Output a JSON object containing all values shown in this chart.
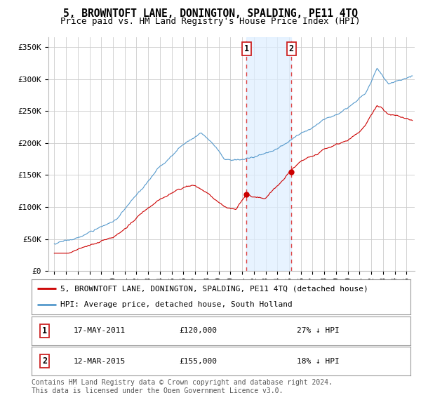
{
  "title": "5, BROWNTOFT LANE, DONINGTON, SPALDING, PE11 4TQ",
  "subtitle": "Price paid vs. HM Land Registry's House Price Index (HPI)",
  "ylabel_ticks": [
    "£0",
    "£50K",
    "£100K",
    "£150K",
    "£200K",
    "£250K",
    "£300K",
    "£350K"
  ],
  "ytick_values": [
    0,
    50000,
    100000,
    150000,
    200000,
    250000,
    300000,
    350000
  ],
  "ylim": [
    0,
    370000
  ],
  "xlim_start": 1994.5,
  "xlim_end": 2025.7,
  "sale1_date": 2011.38,
  "sale1_price": 120000,
  "sale1_label": "17-MAY-2011",
  "sale1_pct": "27% ↓ HPI",
  "sale2_date": 2015.19,
  "sale2_price": 155000,
  "sale2_label": "12-MAR-2015",
  "sale2_pct": "18% ↓ HPI",
  "shade_color": "#ddeeff",
  "shade_alpha": 0.7,
  "vline_color": "#dd4444",
  "property_color": "#cc0000",
  "hpi_color": "#5599cc",
  "legend_label_property": "5, BROWNTOFT LANE, DONINGTON, SPALDING, PE11 4TQ (detached house)",
  "legend_label_hpi": "HPI: Average price, detached house, South Holland",
  "footer1": "Contains HM Land Registry data © Crown copyright and database right 2024.",
  "footer2": "This data is licensed under the Open Government Licence v3.0.",
  "background_color": "#ffffff",
  "grid_color": "#cccccc",
  "title_fontsize": 10.5,
  "subtitle_fontsize": 9,
  "tick_fontsize": 8,
  "legend_fontsize": 8,
  "footer_fontsize": 7
}
